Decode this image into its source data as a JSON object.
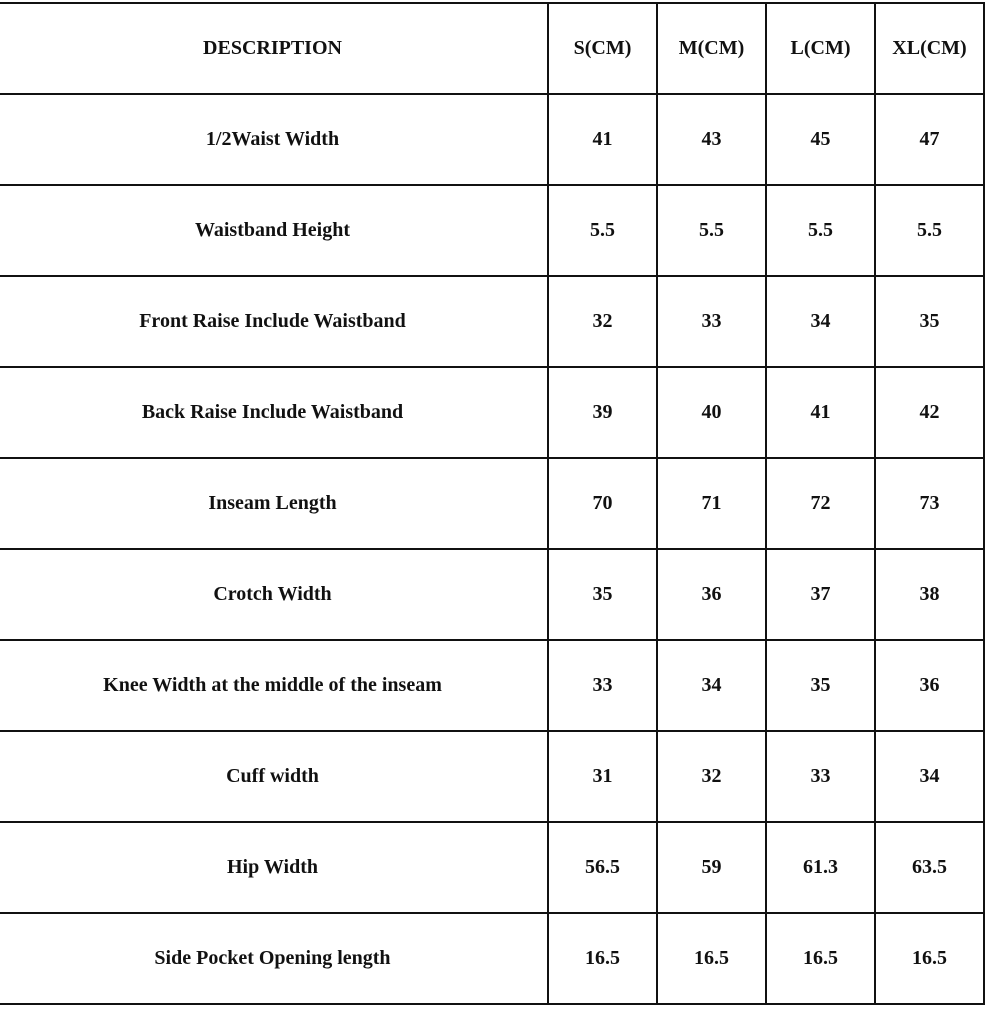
{
  "table": {
    "headers": [
      "DESCRIPTION",
      "S(CM)",
      "M(CM)",
      "L(CM)",
      "XL(CM)"
    ],
    "rows": [
      [
        "1/2Waist Width",
        "41",
        "43",
        "45",
        "47"
      ],
      [
        "Waistband Height",
        "5.5",
        "5.5",
        "5.5",
        "5.5"
      ],
      [
        "Front Raise Include Waistband",
        "32",
        "33",
        "34",
        "35"
      ],
      [
        "Back Raise Include Waistband",
        "39",
        "40",
        "41",
        "42"
      ],
      [
        "Inseam Length",
        "70",
        "71",
        "72",
        "73"
      ],
      [
        "Crotch Width",
        "35",
        "36",
        "37",
        "38"
      ],
      [
        "Knee Width at the middle of the inseam",
        "33",
        "34",
        "35",
        "36"
      ],
      [
        "Cuff width",
        "31",
        "32",
        "33",
        "34"
      ],
      [
        "Hip Width",
        "56.5",
        "59",
        "61.3",
        "63.5"
      ],
      [
        "Side Pocket Opening length",
        "16.5",
        "16.5",
        "16.5",
        "16.5"
      ]
    ]
  }
}
